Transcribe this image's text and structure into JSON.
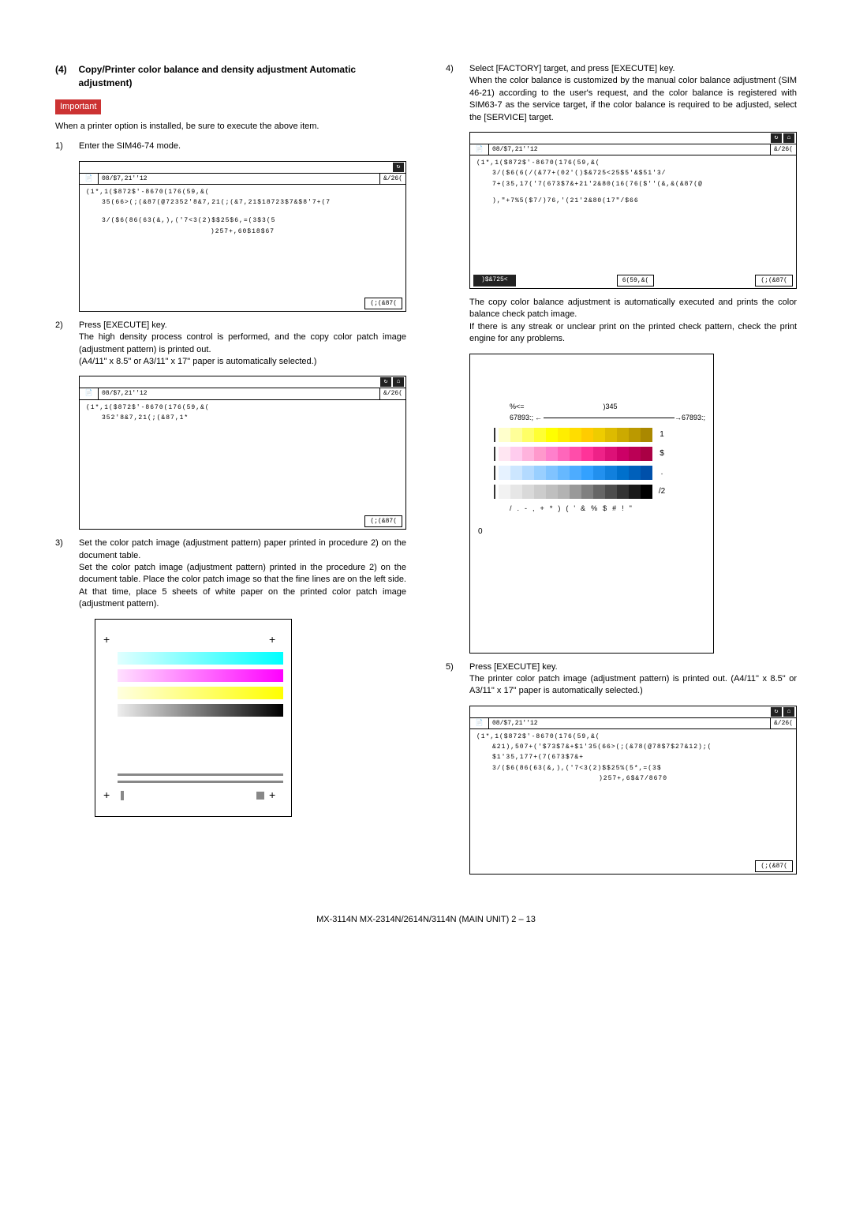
{
  "heading": {
    "num": "(4)",
    "title": "Copy/Printer color balance and density adjustment Automatic adjustment)"
  },
  "important_label": "Important",
  "left": {
    "intro": "When a printer option is installed, be sure to execute the above item.",
    "step1": {
      "num": "1)",
      "text": "Enter the SIM46-74 mode."
    },
    "step2": {
      "num": "2)",
      "l1": "Press [EXECUTE] key.",
      "l2": "The high density process control is performed, and the copy color patch image (adjustment pattern) is printed out.",
      "l3": "(A4/11\" x 8.5\" or A3/11\" x 17\" paper is automatically selected.)"
    },
    "step3": {
      "num": "3)",
      "l1": "Set the color patch image (adjustment pattern) paper printed in procedure 2) on the document table.",
      "l2": "Set the color patch image (adjustment pattern) printed in the procedure 2) on the document table. Place the color patch image so that the fine lines are on the left side. At that time, place 5 sheets of white paper on the printed color patch image (adjustment pattern)."
    }
  },
  "right": {
    "step4": {
      "num": "4)",
      "l1": "Select [FACTORY] target, and press [EXECUTE] key.",
      "l2": "When the color balance is customized by the manual color balance adjustment (SIM 46-21) according to the user's request, and the color balance is registered with SIM63-7 as the service target, if the color balance is required to be adjusted, select the [SERVICE] target.",
      "l3": "The copy color balance adjustment is automatically executed and prints the color balance check patch image.",
      "l4": "If there is any streak or unclear print on the printed check pattern, check the print engine for any problems."
    },
    "step5": {
      "num": "5)",
      "l1": "Press [EXECUTE] key.",
      "l2": "The printer color patch image (adjustment pattern) is printed out. (A4/11\" x 8.5\" or A3/11\" x 17\" paper is automatically selected.)"
    }
  },
  "screens": {
    "common_title": "08/$7,21''12",
    "close_label": "&/26(",
    "exec_label": "(;(&87(",
    "s1": {
      "h1": "(1*,1($872$'-8670(176(59,&(",
      "l1": "35(66>(;(&87(@72352'8&7,21(;(&7,21$18723$7&$8'7+(7",
      "l2": "3/($6(86(63(&,),('7<3(2)$$25$6,=(3$3(5",
      "l3": ")257+,60$18$67"
    },
    "s2": {
      "h1": "(1*,1($872$'-8670(176(59,&(",
      "l1": "352'8&7,21(;(&87,1*"
    },
    "s3": {
      "h1": "(1*,1($872$'-8670(176(59,&(",
      "l1": "3/($6(6(/(&77+(02'()$&725<25$5'&$51'3/",
      "l2": "7+(35,17('7(673$7&+21'2&80(16(76($''(&,&(&87(@",
      "l3": "),\"+7%5($7/)76,'(21'2&80(17\"/$66",
      "btn_factory": ")$&725<",
      "btn_service": "6(59,&("
    },
    "s4": {
      "h1": "(1*,1($872$'-8670(176(59,&(",
      "l1": "&21),507+('$73$7&+$1'35(66>(;(&78(@78$7$27&12);(",
      "l2": "$1'35,177+(7(673$7&+",
      "l3": "3/($6(86(63(&,),('7<3(2)$$25%(5*,=(3$",
      "l4": ")257+,6$&7/8670"
    }
  },
  "chart": {
    "left_top": "%<=",
    "right_top": ")345",
    "label_tl": "67893:;",
    "label_tr": "67893:;",
    "left_zero": "0",
    "rows": [
      {
        "label": "1",
        "colors": [
          "#ffffcc",
          "#ffff99",
          "#ffff66",
          "#ffff33",
          "#ffff00",
          "#ffee00",
          "#ffdd00",
          "#ffcc00",
          "#eecc00",
          "#ddbb00",
          "#ccaa00",
          "#bb9900",
          "#aa8800"
        ]
      },
      {
        "label": "$",
        "colors": [
          "#ffe6f2",
          "#ffccee",
          "#ffb3dd",
          "#ff99cc",
          "#ff80cc",
          "#ff66bb",
          "#ff4daa",
          "#ff3399",
          "#ee2288",
          "#dd1177",
          "#cc0066",
          "#bb0055",
          "#aa0044"
        ]
      },
      {
        "label": ".",
        "colors": [
          "#e6f2ff",
          "#cce6ff",
          "#b3daff",
          "#99cfff",
          "#80c3ff",
          "#66b8ff",
          "#4dacff",
          "#33a1ff",
          "#2290ee",
          "#1180dd",
          "#0070cc",
          "#0060bb",
          "#0050aa"
        ]
      },
      {
        "label": "/2",
        "colors": [
          "#f2f2f2",
          "#e6e6e6",
          "#d9d9d9",
          "#cccccc",
          "#bfbfbf",
          "#b3b3b3",
          "#999999",
          "#808080",
          "#666666",
          "#4d4d4d",
          "#333333",
          "#1a1a1a",
          "#000000"
        ]
      }
    ],
    "bottom_axis": [
      "/",
      ".",
      "-",
      ",",
      "+",
      "*",
      ")",
      "(",
      "'",
      "&",
      "%",
      "$",
      "#",
      "!",
      "\""
    ]
  },
  "footer": "MX-3114N  MX-2314N/2614N/3114N (MAIN UNIT)  2 – 13"
}
